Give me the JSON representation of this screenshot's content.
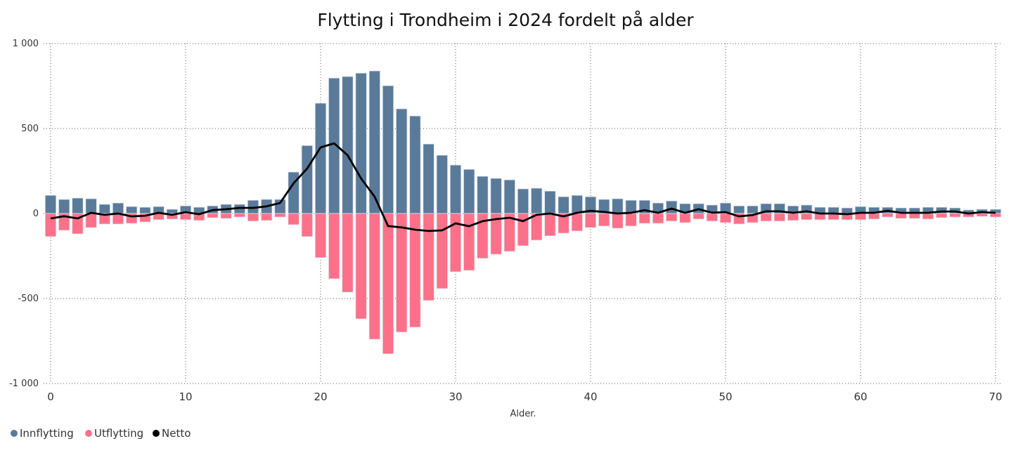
{
  "chart_data": {
    "type": "bar",
    "title": "Flytting i Trondheim i 2024 fordelt på alder",
    "xlabel": "Alder.",
    "ylabel": "",
    "xlim": [
      0,
      70
    ],
    "ylim": [
      -1000,
      1000
    ],
    "yticks": [
      1000,
      500,
      0,
      -500,
      -1000
    ],
    "ytick_labels": [
      "1 000",
      "500",
      "0",
      "-500",
      "-1 000"
    ],
    "xticks": [
      0,
      10,
      20,
      30,
      40,
      50,
      60,
      70
    ],
    "xtick_labels": [
      "0",
      "10",
      "20",
      "30",
      "40",
      "50",
      "60",
      "70"
    ],
    "grid": true,
    "legend_position": "bottom-left",
    "x": [
      0,
      1,
      2,
      3,
      4,
      5,
      6,
      7,
      8,
      9,
      10,
      11,
      12,
      13,
      14,
      15,
      16,
      17,
      18,
      19,
      20,
      21,
      22,
      23,
      24,
      25,
      26,
      27,
      28,
      29,
      30,
      31,
      32,
      33,
      34,
      35,
      36,
      37,
      38,
      39,
      40,
      41,
      42,
      43,
      44,
      45,
      46,
      47,
      48,
      49,
      50,
      51,
      52,
      53,
      54,
      55,
      56,
      57,
      58,
      59,
      60,
      61,
      62,
      63,
      64,
      65,
      66,
      67,
      68,
      69,
      70
    ],
    "series": [
      {
        "name": "Innflytting",
        "type": "bar",
        "color": "#5A7A9A",
        "values": [
          107,
          83,
          91,
          87,
          54,
          62,
          41,
          37,
          41,
          25,
          45,
          37,
          45,
          54,
          54,
          78,
          83,
          83,
          244,
          400,
          649,
          797,
          806,
          826,
          839,
          752,
          616,
          574,
          409,
          343,
          285,
          260,
          219,
          207,
          198,
          145,
          149,
          132,
          99,
          107,
          99,
          83,
          87,
          78,
          78,
          62,
          74,
          58,
          58,
          50,
          62,
          45,
          45,
          58,
          58,
          45,
          50,
          37,
          37,
          33,
          41,
          37,
          37,
          33,
          33,
          37,
          37,
          33,
          21,
          25,
          25
        ]
      },
      {
        "name": "Utflytting",
        "type": "bar",
        "color": "#FC7189",
        "values": [
          -136,
          -99,
          -120,
          -83,
          -62,
          -62,
          -58,
          -50,
          -37,
          -33,
          -37,
          -41,
          -25,
          -29,
          -21,
          -45,
          -41,
          -21,
          -66,
          -136,
          -260,
          -384,
          -463,
          -620,
          -740,
          -826,
          -698,
          -669,
          -512,
          -442,
          -343,
          -335,
          -264,
          -240,
          -223,
          -190,
          -157,
          -132,
          -116,
          -103,
          -83,
          -74,
          -87,
          -74,
          -58,
          -58,
          -45,
          -54,
          -33,
          -45,
          -54,
          -62,
          -54,
          -45,
          -45,
          -41,
          -37,
          -37,
          -37,
          -37,
          -37,
          -33,
          -21,
          -29,
          -29,
          -33,
          -25,
          -21,
          -21,
          -17,
          -21
        ]
      },
      {
        "name": "Netto",
        "type": "line",
        "color": "#000000",
        "values": [
          -29,
          -16,
          -29,
          4,
          -8,
          0,
          -17,
          -13,
          4,
          -8,
          8,
          -4,
          20,
          25,
          33,
          33,
          42,
          62,
          178,
          264,
          389,
          413,
          343,
          206,
          99,
          -74,
          -82,
          -95,
          -103,
          -99,
          -58,
          -75,
          -45,
          -33,
          -25,
          -45,
          -8,
          0,
          -17,
          4,
          16,
          9,
          0,
          4,
          20,
          4,
          29,
          4,
          25,
          5,
          8,
          -17,
          -9,
          13,
          13,
          4,
          13,
          0,
          0,
          -4,
          4,
          4,
          16,
          4,
          4,
          4,
          12,
          12,
          0,
          8,
          4
        ]
      }
    ]
  }
}
